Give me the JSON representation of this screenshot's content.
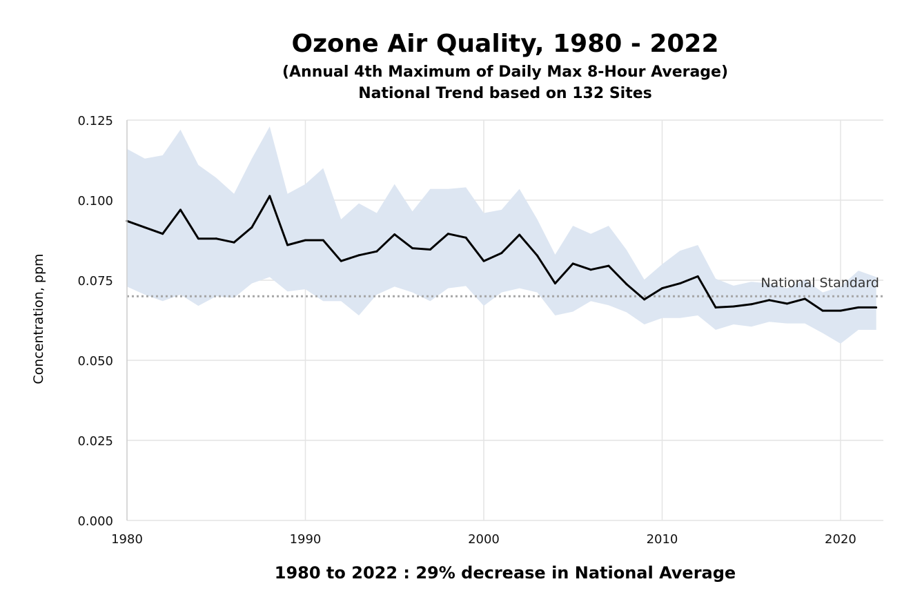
{
  "chart_data": {
    "type": "line",
    "title": "Ozone Air Quality, 1980 - 2022",
    "subtitle_lines": [
      "(Annual 4th Maximum of Daily Max 8-Hour Average)",
      "National Trend based on 132 Sites"
    ],
    "xlabel": "",
    "ylabel": "Concentration, ppm",
    "footer": "1980 to 2022 :  29% decrease in National Average",
    "xlim": [
      1980,
      2022.4
    ],
    "ylim": [
      0.0,
      0.125
    ],
    "x_ticks": [
      1980,
      1990,
      2000,
      2010,
      2020
    ],
    "y_ticks": [
      "0.000",
      "0.025",
      "0.050",
      "0.075",
      "0.100",
      "0.125"
    ],
    "grid": true,
    "colors": {
      "band": "#dde6f2",
      "line": "#000000",
      "standard": "#a6a6a6",
      "grid": "#e4e4e4"
    },
    "reference_line": {
      "label": "National Standard",
      "value": 0.07,
      "style": "dotted"
    },
    "x": [
      1980,
      1981,
      1982,
      1983,
      1984,
      1985,
      1986,
      1987,
      1988,
      1989,
      1990,
      1991,
      1992,
      1993,
      1994,
      1995,
      1996,
      1997,
      1998,
      1999,
      2000,
      2001,
      2002,
      2003,
      2004,
      2005,
      2006,
      2007,
      2008,
      2009,
      2010,
      2011,
      2012,
      2013,
      2014,
      2015,
      2016,
      2017,
      2018,
      2019,
      2020,
      2021,
      2022
    ],
    "series": [
      {
        "type": "line",
        "values": [
          0.0935,
          0.0915,
          0.0895,
          0.097,
          0.088,
          0.088,
          0.0868,
          0.0915,
          0.1013,
          0.086,
          0.0875,
          0.0875,
          0.081,
          0.0828,
          0.084,
          0.0893,
          0.085,
          0.0846,
          0.0895,
          0.0883,
          0.081,
          0.0835,
          0.0892,
          0.0827,
          0.074,
          0.0802,
          0.0783,
          0.0795,
          0.0738,
          0.069,
          0.0725,
          0.074,
          0.0762,
          0.0665,
          0.0668,
          0.0675,
          0.0688,
          0.0677,
          0.0692,
          0.0655,
          0.0655,
          0.0665,
          0.0665
        ]
      },
      {
        "type": "band",
        "upper": [
          0.116,
          0.113,
          0.114,
          0.122,
          0.111,
          0.107,
          0.102,
          0.113,
          0.123,
          0.102,
          0.105,
          0.11,
          0.094,
          0.099,
          0.096,
          0.105,
          0.0965,
          0.1035,
          0.1035,
          0.104,
          0.096,
          0.097,
          0.1035,
          0.094,
          0.083,
          0.092,
          0.0895,
          0.092,
          0.0845,
          0.0752,
          0.08,
          0.0842,
          0.086,
          0.0755,
          0.0733,
          0.0745,
          0.074,
          0.0725,
          0.0752,
          0.0712,
          0.073,
          0.078,
          0.076
        ],
        "lower": [
          0.073,
          0.0705,
          0.0685,
          0.0705,
          0.067,
          0.07,
          0.0695,
          0.074,
          0.076,
          0.0715,
          0.0722,
          0.0685,
          0.0685,
          0.064,
          0.0705,
          0.073,
          0.0712,
          0.0685,
          0.0725,
          0.0732,
          0.067,
          0.0712,
          0.0725,
          0.0712,
          0.064,
          0.0652,
          0.0685,
          0.0672,
          0.065,
          0.0612,
          0.0632,
          0.0632,
          0.064,
          0.0595,
          0.0612,
          0.0605,
          0.062,
          0.0615,
          0.0615,
          0.0585,
          0.0552,
          0.0595,
          0.0595
        ]
      }
    ]
  }
}
